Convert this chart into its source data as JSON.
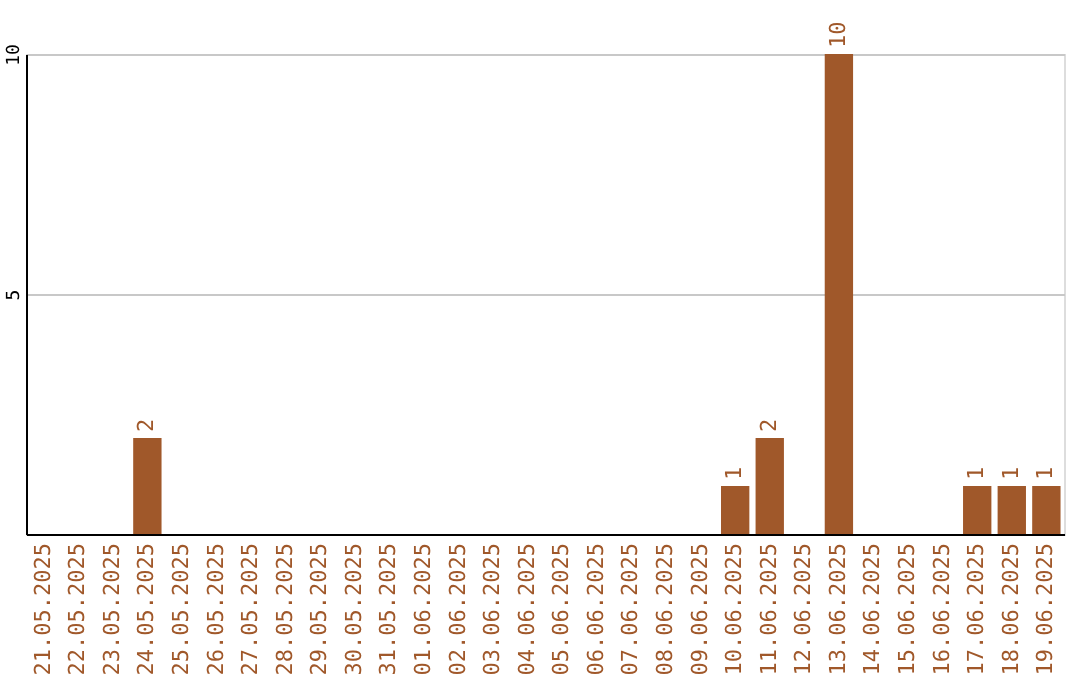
{
  "chart_data": {
    "type": "bar",
    "categories": [
      "21.05.2025",
      "22.05.2025",
      "23.05.2025",
      "24.05.2025",
      "25.05.2025",
      "26.05.2025",
      "27.05.2025",
      "28.05.2025",
      "29.05.2025",
      "30.05.2025",
      "31.05.2025",
      "01.06.2025",
      "02.06.2025",
      "03.06.2025",
      "04.06.2025",
      "05.06.2025",
      "06.06.2025",
      "07.06.2025",
      "08.06.2025",
      "09.06.2025",
      "10.06.2025",
      "11.06.2025",
      "12.06.2025",
      "13.06.2025",
      "14.06.2025",
      "15.06.2025",
      "16.06.2025",
      "17.06.2025",
      "18.06.2025",
      "19.06.2025"
    ],
    "values": [
      0,
      0,
      0,
      2,
      0,
      0,
      0,
      0,
      0,
      0,
      0,
      0,
      0,
      0,
      0,
      0,
      0,
      0,
      0,
      0,
      1,
      2,
      0,
      10,
      0,
      0,
      0,
      1,
      1,
      1
    ],
    "value_labels": [
      null,
      null,
      null,
      "2",
      null,
      null,
      null,
      null,
      null,
      null,
      null,
      null,
      null,
      null,
      null,
      null,
      null,
      null,
      null,
      null,
      "1",
      "2",
      null,
      "10",
      null,
      null,
      null,
      "1",
      "1",
      "1"
    ],
    "color": "#a0582a",
    "ylim": [
      0,
      10
    ],
    "yticks": [
      {
        "value": 0,
        "label": null
      },
      5,
      10
    ],
    "grid": "y"
  }
}
